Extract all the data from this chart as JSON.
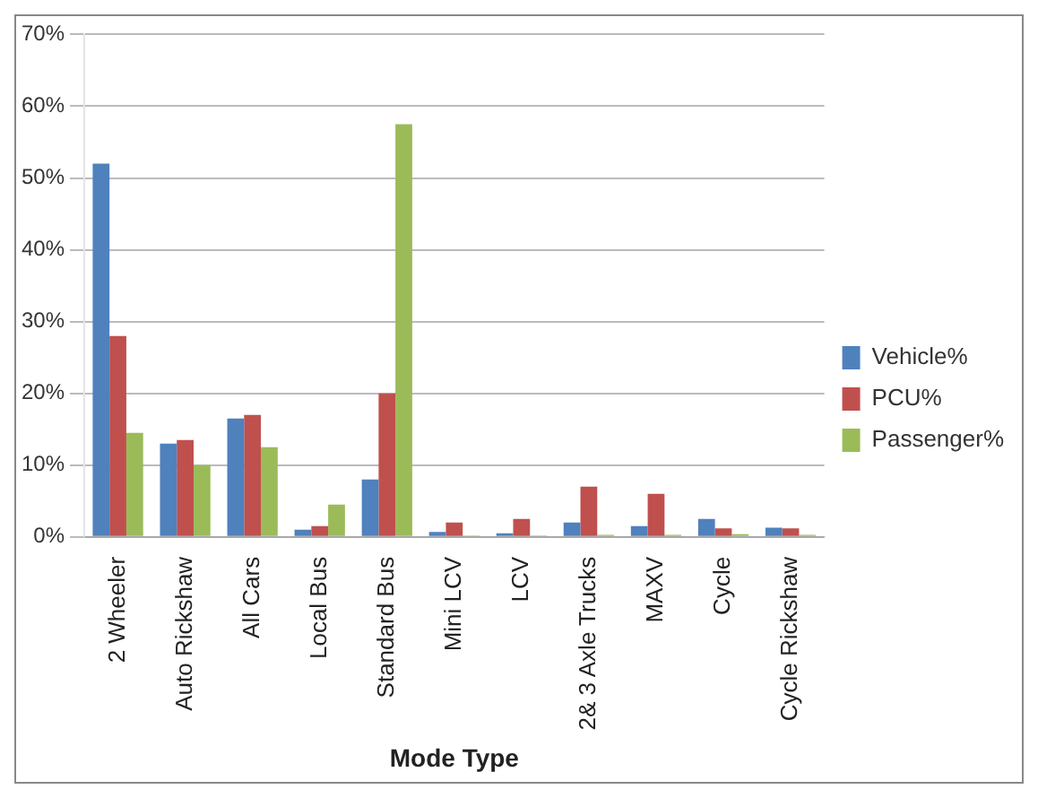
{
  "chart_data": {
    "type": "bar",
    "xlabel": "Mode Type",
    "categories": [
      "2 Wheeler",
      "Auto Rickshaw",
      "All Cars",
      "Local Bus",
      "Standard Bus",
      "Mini LCV",
      "LCV",
      "2& 3 Axle Trucks",
      "MAXV",
      "Cycle",
      "Cycle Rickshaw"
    ],
    "series": [
      {
        "name": "Vehicle%",
        "color": "#4f81bd",
        "values": [
          52,
          13,
          16.5,
          1,
          8,
          0.7,
          0.5,
          2,
          1.5,
          2.5,
          1.3
        ]
      },
      {
        "name": "PCU%",
        "color": "#c0504d",
        "values": [
          28,
          13.5,
          17,
          1.5,
          20,
          2,
          2.5,
          7,
          6,
          1.2,
          1.2
        ]
      },
      {
        "name": "Passenger%",
        "color": "#9bbb59",
        "values": [
          14.5,
          10,
          12.5,
          4.5,
          57.5,
          0.2,
          0.2,
          0.3,
          0.3,
          0.4,
          0.3
        ]
      }
    ],
    "ylim": [
      0,
      70
    ],
    "yticks": [
      {
        "value": 0,
        "label": "0%"
      },
      {
        "value": 10,
        "label": "10%"
      },
      {
        "value": 20,
        "label": "20%"
      },
      {
        "value": 30,
        "label": "30%"
      },
      {
        "value": 40,
        "label": "40%"
      },
      {
        "value": 50,
        "label": "50%"
      },
      {
        "value": 60,
        "label": "60%"
      },
      {
        "value": 70,
        "label": "70%"
      }
    ],
    "grid": "y",
    "legend": "right"
  }
}
